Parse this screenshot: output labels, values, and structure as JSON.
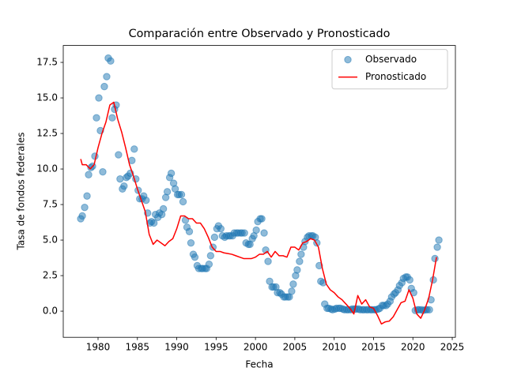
{
  "chart_data": {
    "type": "scatter",
    "title": "Comparación entre Observado y Pronosticado",
    "x_label": "Fecha",
    "y_label": "Tasa de fondos federales",
    "xlim": [
      1975.58,
      2025.4
    ],
    "ylim": [
      -1.84,
      18.69
    ],
    "xticks": [
      1980,
      1985,
      1990,
      1995,
      2000,
      2005,
      2010,
      2015,
      2020,
      2025
    ],
    "yticks": [
      {
        "value": 0,
        "label": "0.0"
      },
      {
        "value": 2.5,
        "label": "2.5"
      },
      {
        "value": 5,
        "label": "5.0"
      },
      {
        "value": 7.5,
        "label": "7.5"
      },
      {
        "value": 10,
        "label": "10.0"
      },
      {
        "value": 12.5,
        "label": "12.5"
      },
      {
        "value": 15,
        "label": "15.0"
      },
      {
        "value": 17.5,
        "label": "17.5"
      }
    ],
    "grid": false,
    "legend": "upper right",
    "series": [
      {
        "name": "Observado",
        "type": "scatter",
        "color": "#1f77b4",
        "x": [
          1977.8,
          1978.0,
          1978.3,
          1978.6,
          1978.8,
          1979.1,
          1979.3,
          1979.6,
          1979.8,
          1980.1,
          1980.3,
          1980.6,
          1980.8,
          1981.1,
          1981.3,
          1981.6,
          1981.8,
          1982.1,
          1982.3,
          1982.6,
          1982.8,
          1983.1,
          1983.3,
          1983.6,
          1983.8,
          1984.1,
          1984.3,
          1984.6,
          1984.8,
          1985.1,
          1985.3,
          1985.6,
          1985.8,
          1986.1,
          1986.3,
          1986.6,
          1986.8,
          1987.1,
          1987.3,
          1987.6,
          1987.8,
          1988.1,
          1988.3,
          1988.6,
          1988.8,
          1989.1,
          1989.3,
          1989.6,
          1989.8,
          1990.1,
          1990.3,
          1990.6,
          1990.8,
          1991.1,
          1991.3,
          1991.6,
          1991.8,
          1992.1,
          1992.3,
          1992.6,
          1992.8,
          1993.1,
          1993.3,
          1993.6,
          1993.8,
          1994.1,
          1994.3,
          1994.6,
          1994.8,
          1995.1,
          1995.3,
          1995.6,
          1995.8,
          1996.1,
          1996.3,
          1996.6,
          1996.8,
          1997.1,
          1997.3,
          1997.6,
          1997.8,
          1998.1,
          1998.3,
          1998.6,
          1998.8,
          1999.1,
          1999.3,
          1999.6,
          1999.8,
          2000.1,
          2000.3,
          2000.6,
          2000.8,
          2001.1,
          2001.3,
          2001.6,
          2001.8,
          2002.1,
          2002.3,
          2002.6,
          2002.8,
          2003.1,
          2003.3,
          2003.6,
          2003.8,
          2004.1,
          2004.3,
          2004.6,
          2004.8,
          2005.1,
          2005.3,
          2005.6,
          2005.8,
          2006.1,
          2006.3,
          2006.6,
          2006.8,
          2007.1,
          2007.3,
          2007.6,
          2007.8,
          2008.1,
          2008.3,
          2008.6,
          2008.8,
          2009.1,
          2009.3,
          2009.6,
          2009.8,
          2010.1,
          2010.3,
          2010.6,
          2010.8,
          2011.1,
          2011.3,
          2011.6,
          2011.8,
          2012.1,
          2012.3,
          2012.6,
          2012.8,
          2013.1,
          2013.3,
          2013.6,
          2013.8,
          2014.1,
          2014.3,
          2014.6,
          2014.8,
          2015.1,
          2015.3,
          2015.6,
          2015.8,
          2016.1,
          2016.3,
          2016.6,
          2016.8,
          2017.1,
          2017.3,
          2017.6,
          2017.8,
          2018.1,
          2018.3,
          2018.6,
          2018.8,
          2019.1,
          2019.3,
          2019.6,
          2019.8,
          2020.1,
          2020.3,
          2020.6,
          2020.8,
          2021.1,
          2021.3,
          2021.6,
          2021.8,
          2022.1,
          2022.3,
          2022.6,
          2022.8,
          2023.1,
          2023.3
        ],
        "values": [
          6.5,
          6.7,
          7.3,
          8.1,
          9.6,
          10.1,
          10.2,
          10.9,
          13.6,
          15.0,
          12.7,
          9.8,
          15.8,
          16.5,
          17.8,
          17.6,
          13.6,
          14.2,
          14.5,
          11.0,
          9.3,
          8.6,
          8.8,
          9.4,
          9.5,
          9.7,
          10.6,
          11.4,
          9.3,
          8.5,
          7.9,
          7.9,
          8.1,
          7.8,
          6.9,
          6.2,
          6.3,
          6.2,
          6.8,
          6.6,
          6.9,
          6.8,
          7.2,
          8.0,
          8.4,
          9.4,
          9.7,
          9.0,
          8.6,
          8.2,
          8.2,
          8.2,
          7.7,
          6.4,
          5.9,
          5.6,
          4.8,
          4.0,
          3.8,
          3.2,
          3.0,
          3.0,
          3.0,
          3.0,
          3.0,
          3.3,
          3.9,
          4.5,
          5.2,
          5.8,
          6.0,
          5.8,
          5.3,
          5.2,
          5.3,
          5.3,
          5.3,
          5.3,
          5.5,
          5.5,
          5.5,
          5.5,
          5.5,
          5.5,
          4.8,
          4.7,
          4.7,
          5.1,
          5.3,
          5.7,
          6.3,
          6.5,
          6.5,
          5.5,
          4.3,
          3.5,
          2.1,
          1.7,
          1.7,
          1.7,
          1.3,
          1.3,
          1.2,
          1.0,
          1.0,
          1.0,
          1.0,
          1.4,
          1.9,
          2.5,
          2.9,
          3.5,
          4.0,
          4.5,
          4.9,
          5.2,
          5.3,
          5.3,
          5.3,
          5.2,
          4.8,
          3.2,
          2.1,
          2.0,
          0.5,
          0.2,
          0.2,
          0.15,
          0.1,
          0.15,
          0.2,
          0.2,
          0.2,
          0.15,
          0.1,
          0.1,
          0.1,
          0.1,
          0.15,
          0.15,
          0.15,
          0.15,
          0.1,
          0.1,
          0.1,
          0.1,
          0.1,
          0.1,
          0.1,
          0.1,
          0.1,
          0.15,
          0.2,
          0.4,
          0.4,
          0.4,
          0.5,
          0.7,
          1.0,
          1.2,
          1.3,
          1.5,
          1.8,
          2.0,
          2.3,
          2.4,
          2.4,
          2.2,
          1.6,
          1.3,
          0.05,
          0.1,
          0.1,
          0.1,
          0.05,
          0.1,
          0.1,
          0.1,
          0.8,
          2.2,
          3.7,
          4.5,
          5.0
        ]
      },
      {
        "name": "Pronosticado",
        "type": "line",
        "color": "#ff0000",
        "x": [
          1977.8,
          1978.0,
          1978.5,
          1979.0,
          1979.5,
          1980.0,
          1980.5,
          1981.0,
          1981.5,
          1982.0,
          1982.5,
          1983.0,
          1983.5,
          1984.0,
          1984.5,
          1985.0,
          1985.5,
          1986.0,
          1986.5,
          1987.0,
          1987.5,
          1988.0,
          1988.5,
          1989.0,
          1989.5,
          1990.0,
          1990.5,
          1991.0,
          1991.5,
          1992.0,
          1992.5,
          1993.0,
          1993.5,
          1994.0,
          1994.5,
          1995.0,
          1995.5,
          1996.0,
          1996.5,
          1997.0,
          1997.5,
          1998.0,
          1998.5,
          1999.0,
          1999.5,
          2000.0,
          2000.5,
          2001.0,
          2001.5,
          2002.0,
          2002.5,
          2003.0,
          2003.5,
          2004.0,
          2004.5,
          2005.0,
          2005.5,
          2006.0,
          2006.5,
          2007.0,
          2007.5,
          2008.0,
          2008.5,
          2009.0,
          2009.5,
          2010.0,
          2010.5,
          2011.0,
          2011.5,
          2012.0,
          2012.5,
          2013.0,
          2013.5,
          2014.0,
          2014.5,
          2015.0,
          2015.5,
          2016.0,
          2016.5,
          2017.0,
          2017.5,
          2018.0,
          2018.5,
          2019.0,
          2019.5,
          2020.0,
          2020.5,
          2021.0,
          2021.5,
          2022.0,
          2022.5,
          2023.0
        ],
        "values": [
          10.7,
          10.3,
          10.3,
          10.0,
          10.3,
          11.5,
          12.5,
          13.3,
          14.5,
          14.7,
          13.5,
          12.6,
          11.5,
          10.3,
          9.5,
          8.6,
          7.8,
          7.0,
          5.4,
          4.7,
          5.0,
          4.8,
          4.6,
          4.9,
          5.1,
          5.8,
          6.7,
          6.7,
          6.5,
          6.5,
          6.2,
          6.2,
          5.8,
          5.2,
          4.5,
          4.2,
          4.2,
          4.1,
          4.05,
          4.0,
          3.9,
          3.8,
          3.7,
          3.7,
          3.7,
          3.8,
          4.0,
          4.0,
          4.2,
          3.8,
          4.2,
          3.9,
          3.9,
          3.8,
          4.5,
          4.5,
          4.3,
          4.8,
          4.9,
          5.1,
          5.0,
          4.5,
          3.0,
          1.9,
          1.5,
          1.3,
          1.0,
          0.8,
          0.5,
          0.2,
          -0.2,
          1.1,
          0.5,
          0.8,
          0.3,
          0.2,
          -0.3,
          -0.9,
          -0.75,
          -0.7,
          -0.4,
          0.1,
          0.6,
          0.7,
          1.5,
          0.9,
          -0.2,
          -0.5,
          0.1,
          0.9,
          2.2,
          3.8
        ]
      }
    ]
  }
}
